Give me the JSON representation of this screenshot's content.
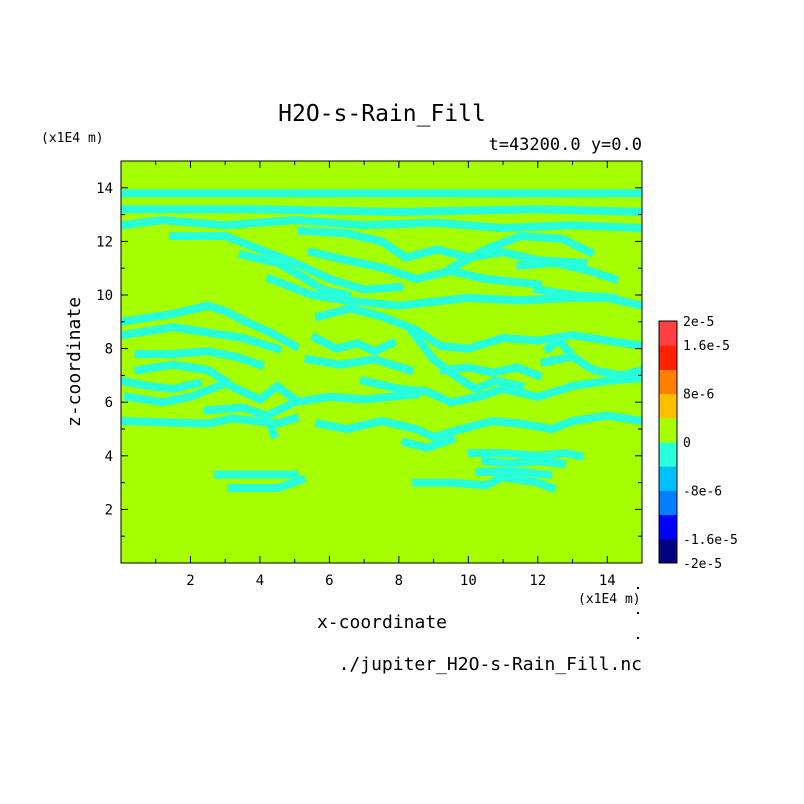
{
  "chart_data": {
    "type": "heatmap",
    "title": "H2O-s-Rain_Fill",
    "subtitle": "t=43200.0 y=0.0",
    "xlabel": "x-coordinate",
    "ylabel": "z-coordinate",
    "x_unit": "(x1E4 m)",
    "y_unit": "(x1E4 m)",
    "footer": "./jupiter_H2O-s-Rain_Fill.nc",
    "xlim": [
      0,
      15
    ],
    "ylim": [
      0,
      15
    ],
    "x_ticks": [
      {
        "value": 2,
        "label": "2"
      },
      {
        "value": 4,
        "label": "4"
      },
      {
        "value": 6,
        "label": "6"
      },
      {
        "value": 8,
        "label": "8"
      },
      {
        "value": 10,
        "label": "10"
      },
      {
        "value": 12,
        "label": "12"
      },
      {
        "value": 14,
        "label": "14"
      }
    ],
    "y_ticks": [
      {
        "value": 2,
        "label": "2"
      },
      {
        "value": 4,
        "label": "4"
      },
      {
        "value": 6,
        "label": "6"
      },
      {
        "value": 8,
        "label": "8"
      },
      {
        "value": 10,
        "label": "10"
      },
      {
        "value": 12,
        "label": "12"
      },
      {
        "value": 14,
        "label": "14"
      }
    ],
    "background_level_color": "#a6ff00",
    "contour_color": "#26ffd9",
    "colorbar": {
      "range": [
        -2e-05,
        2e-05
      ],
      "colors": [
        "#000080",
        "#0000ff",
        "#0080ff",
        "#00bfff",
        "#26ffd9",
        "#a6ff00",
        "#ffbf00",
        "#ff8000",
        "#ff2000",
        "#ff4040"
      ],
      "labels": [
        {
          "value": 2e-05,
          "label": "2e-5"
        },
        {
          "value": 1.6e-05,
          "label": "1.6e-5"
        },
        {
          "value": 8e-06,
          "label": "8e-6"
        },
        {
          "value": 0,
          "label": "0"
        },
        {
          "value": -8e-06,
          "label": "-8e-6"
        },
        {
          "value": -1.6e-05,
          "label": "-1.6e-5"
        },
        {
          "value": -2e-05,
          "label": "-2e-5"
        }
      ]
    },
    "negative_regions": [
      {
        "points": [
          [
            0,
            13.8
          ],
          [
            15,
            13.8
          ]
        ]
      },
      {
        "points": [
          [
            0,
            13.2
          ],
          [
            4,
            13.2
          ],
          [
            8,
            13.1
          ],
          [
            12,
            13.2
          ],
          [
            15,
            13.1
          ]
        ]
      },
      {
        "points": [
          [
            0,
            12.6
          ],
          [
            1.2,
            12.8
          ],
          [
            3,
            12.6
          ],
          [
            5,
            12.8
          ],
          [
            7,
            12.6
          ],
          [
            9,
            12.7
          ],
          [
            11,
            12.5
          ],
          [
            13,
            12.6
          ],
          [
            15,
            12.5
          ]
        ]
      },
      {
        "points": [
          [
            1.5,
            12.2
          ],
          [
            3,
            12.2
          ],
          [
            4,
            11.7
          ],
          [
            5,
            11.2
          ],
          [
            6,
            10.6
          ],
          [
            7,
            10.2
          ],
          [
            8,
            10.3
          ]
        ]
      },
      {
        "points": [
          [
            3.5,
            11.5
          ],
          [
            4.5,
            11.2
          ],
          [
            5.2,
            10.7
          ],
          [
            5.8,
            10.2
          ],
          [
            6.5,
            10.0
          ]
        ]
      },
      {
        "points": [
          [
            5.2,
            12.4
          ],
          [
            6.5,
            12.3
          ],
          [
            7.5,
            12.0
          ],
          [
            8.2,
            11.4
          ],
          [
            9.1,
            11.7
          ],
          [
            10,
            11.4
          ],
          [
            11,
            11.6
          ],
          [
            12,
            11.3
          ],
          [
            13.3,
            11.2
          ]
        ]
      },
      {
        "points": [
          [
            5.5,
            11.6
          ],
          [
            6.5,
            11.3
          ],
          [
            7.6,
            11.0
          ],
          [
            8.5,
            10.6
          ],
          [
            9.5,
            10.9
          ],
          [
            10.5,
            10.6
          ],
          [
            12,
            10.4
          ]
        ]
      },
      {
        "points": [
          [
            4.3,
            10.6
          ],
          [
            5.5,
            10.0
          ],
          [
            6.5,
            9.8
          ],
          [
            8,
            9.6
          ],
          [
            10,
            9.9
          ],
          [
            11.5,
            9.8
          ],
          [
            13,
            9.9
          ],
          [
            14,
            9.9
          ],
          [
            15,
            9.6
          ]
        ]
      },
      {
        "points": [
          [
            9.5,
            11.0
          ],
          [
            10.5,
            11.7
          ],
          [
            11.5,
            12.2
          ],
          [
            12.7,
            12.1
          ],
          [
            13.5,
            11.6
          ]
        ]
      },
      {
        "points": [
          [
            11.5,
            11.1
          ],
          [
            12.5,
            11.2
          ],
          [
            13.5,
            10.9
          ],
          [
            14.2,
            10.6
          ]
        ]
      },
      {
        "points": [
          [
            12,
            10.2
          ],
          [
            13,
            10.0
          ],
          [
            14.2,
            9.9
          ]
        ]
      },
      {
        "points": [
          [
            0,
            9.0
          ],
          [
            1.5,
            9.3
          ],
          [
            2.5,
            9.6
          ],
          [
            3,
            9.4
          ],
          [
            3.6,
            9.0
          ],
          [
            4.3,
            8.6
          ],
          [
            5,
            8.1
          ]
        ]
      },
      {
        "points": [
          [
            0,
            8.5
          ],
          [
            1.5,
            8.8
          ],
          [
            2.5,
            8.6
          ],
          [
            3.5,
            8.4
          ],
          [
            4.5,
            8.0
          ]
        ]
      },
      {
        "points": [
          [
            0.5,
            7.8
          ],
          [
            1.5,
            7.8
          ],
          [
            2.5,
            7.9
          ],
          [
            3.3,
            7.7
          ],
          [
            4,
            7.4
          ]
        ]
      },
      {
        "points": [
          [
            0.5,
            7.2
          ],
          [
            1.5,
            7.4
          ],
          [
            2.5,
            7.2
          ],
          [
            3,
            6.8
          ]
        ]
      },
      {
        "points": [
          [
            0,
            6.8
          ],
          [
            0.8,
            6.6
          ],
          [
            1.5,
            6.5
          ],
          [
            2.2,
            6.7
          ]
        ]
      },
      {
        "points": [
          [
            0.2,
            6.2
          ],
          [
            1.2,
            6.0
          ],
          [
            2,
            6.2
          ],
          [
            3,
            6.7
          ],
          [
            3.5,
            6.4
          ],
          [
            4,
            6.1
          ],
          [
            4.5,
            6.6
          ],
          [
            5,
            6.1
          ]
        ]
      },
      {
        "points": [
          [
            2.5,
            5.7
          ],
          [
            3.5,
            5.8
          ],
          [
            4.2,
            5.5
          ],
          [
            5,
            6.0
          ],
          [
            6,
            6.2
          ],
          [
            7,
            6.1
          ],
          [
            8.5,
            6.3
          ]
        ]
      },
      {
        "points": [
          [
            0,
            5.3
          ],
          [
            2.5,
            5.2
          ],
          [
            3.2,
            5.4
          ],
          [
            4.5,
            5.2
          ],
          [
            5,
            5.4
          ]
        ]
      },
      {
        "points": [
          [
            4.3,
            5.2
          ],
          [
            4.4,
            4.8
          ]
        ]
      },
      {
        "points": [
          [
            5.7,
            9.2
          ],
          [
            6.6,
            9.5
          ],
          [
            7.5,
            9.2
          ],
          [
            8.5,
            8.7
          ],
          [
            9.2,
            8.1
          ],
          [
            10,
            8.0
          ],
          [
            11,
            8.4
          ],
          [
            12,
            8.3
          ],
          [
            13,
            8.5
          ],
          [
            14,
            8.3
          ],
          [
            15,
            8.1
          ]
        ]
      },
      {
        "points": [
          [
            5.6,
            8.4
          ],
          [
            6.2,
            8.0
          ],
          [
            6.8,
            8.2
          ],
          [
            7.3,
            7.9
          ],
          [
            7.8,
            8.2
          ]
        ]
      },
      {
        "points": [
          [
            5.4,
            7.6
          ],
          [
            6.3,
            7.4
          ],
          [
            7.3,
            7.6
          ],
          [
            8.3,
            7.2
          ]
        ]
      },
      {
        "points": [
          [
            8.4,
            8.6
          ],
          [
            9.0,
            7.6
          ],
          [
            9.6,
            7.0
          ],
          [
            10.2,
            6.5
          ],
          [
            10.8,
            6.8
          ],
          [
            11.5,
            6.6
          ]
        ]
      },
      {
        "points": [
          [
            7.0,
            6.8
          ],
          [
            8.0,
            6.5
          ],
          [
            8.8,
            6.4
          ],
          [
            9.5,
            6.0
          ],
          [
            10.3,
            6.2
          ],
          [
            11,
            6.5
          ],
          [
            12,
            6.2
          ],
          [
            13,
            6.6
          ],
          [
            14,
            6.8
          ],
          [
            15,
            6.9
          ]
        ]
      },
      {
        "points": [
          [
            9.3,
            7.2
          ],
          [
            10.0,
            7.3
          ],
          [
            10.7,
            7.1
          ],
          [
            11.4,
            7.3
          ],
          [
            12,
            7.0
          ]
        ]
      },
      {
        "points": [
          [
            12.2,
            7.5
          ],
          [
            13,
            7.7
          ],
          [
            13.6,
            7.2
          ],
          [
            14.4,
            7.0
          ],
          [
            15,
            7.2
          ]
        ]
      },
      {
        "points": [
          [
            12.3,
            8.0
          ],
          [
            12.6,
            8.3
          ],
          [
            12.9,
            7.9
          ]
        ]
      },
      {
        "points": [
          [
            5.7,
            5.2
          ],
          [
            6.5,
            5.0
          ],
          [
            7.5,
            5.3
          ],
          [
            8.5,
            5.0
          ],
          [
            9,
            4.7
          ],
          [
            9.8,
            5.0
          ],
          [
            10.7,
            5.3
          ],
          [
            11.5,
            5.2
          ],
          [
            12.4,
            5.0
          ],
          [
            13,
            5.3
          ],
          [
            14,
            5.5
          ],
          [
            15,
            5.3
          ]
        ]
      },
      {
        "points": [
          [
            8.2,
            4.5
          ],
          [
            8.8,
            4.3
          ],
          [
            9.5,
            4.6
          ]
        ]
      },
      {
        "points": [
          [
            10.1,
            4.1
          ],
          [
            11,
            4.1
          ],
          [
            12,
            4.0
          ],
          [
            12.8,
            4.1
          ],
          [
            13.2,
            4.0
          ]
        ]
      },
      {
        "points": [
          [
            10.5,
            3.8
          ],
          [
            11.2,
            3.7
          ],
          [
            12,
            3.8
          ],
          [
            12.7,
            3.7
          ]
        ]
      },
      {
        "points": [
          [
            8.5,
            3.0
          ],
          [
            9.5,
            3.0
          ],
          [
            10.5,
            2.9
          ],
          [
            11,
            3.2
          ],
          [
            12,
            3.0
          ],
          [
            12.4,
            2.8
          ]
        ]
      },
      {
        "points": [
          [
            10.3,
            3.4
          ],
          [
            11.5,
            3.4
          ],
          [
            12.3,
            3.3
          ]
        ]
      },
      {
        "points": [
          [
            2.8,
            3.3
          ],
          [
            5.0,
            3.3
          ]
        ]
      },
      {
        "points": [
          [
            3.2,
            2.8
          ],
          [
            4.5,
            2.8
          ],
          [
            5.2,
            3.1
          ]
        ]
      }
    ]
  }
}
